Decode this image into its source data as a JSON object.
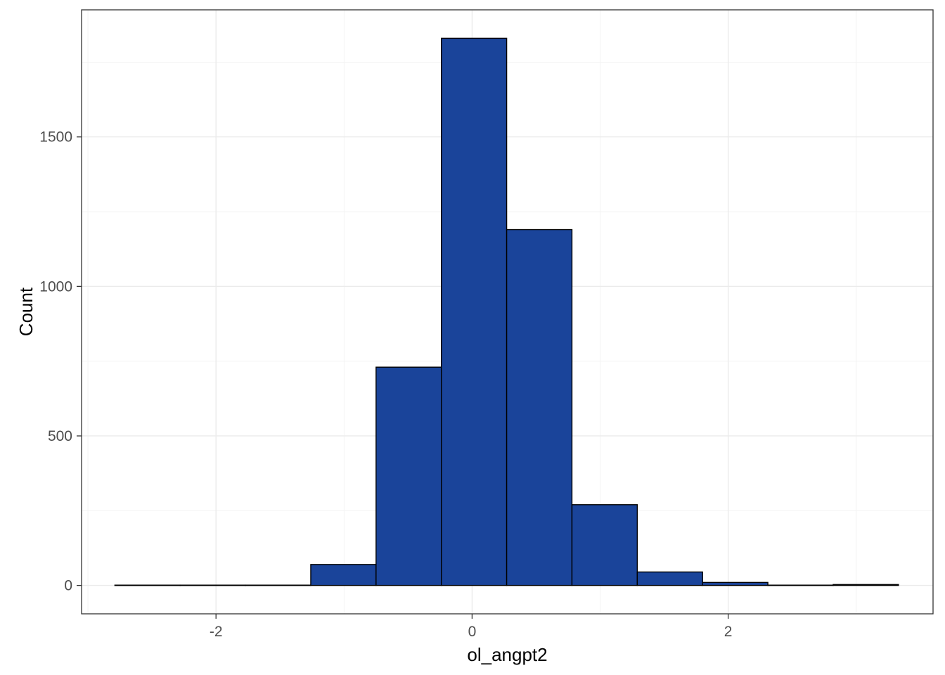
{
  "chart_data": {
    "type": "bar",
    "subtype": "histogram",
    "title": "",
    "xlabel": "ol_angpt2",
    "ylabel": "Count",
    "bar_color": "#1A449A",
    "bar_edge_color": "#000000",
    "grid": true,
    "theme": "bw",
    "xlim": [
      -3.05,
      3.6
    ],
    "ylim": [
      -95,
      1925
    ],
    "x_ticks": [
      -2,
      0,
      2
    ],
    "x_tick_labels": [
      "-2",
      "0",
      "2"
    ],
    "y_ticks": [
      0,
      500,
      1000,
      1500
    ],
    "y_tick_labels": [
      "0",
      "500",
      "1000",
      "1500"
    ],
    "bins": [
      {
        "x0": -2.79,
        "x1": -2.28,
        "count": 1
      },
      {
        "x0": -2.28,
        "x1": -1.77,
        "count": 1
      },
      {
        "x0": -1.77,
        "x1": -1.26,
        "count": 1
      },
      {
        "x0": -1.26,
        "x1": -0.75,
        "count": 70
      },
      {
        "x0": -0.75,
        "x1": -0.24,
        "count": 730
      },
      {
        "x0": -0.24,
        "x1": 0.27,
        "count": 1830
      },
      {
        "x0": 0.27,
        "x1": 0.78,
        "count": 1190
      },
      {
        "x0": 0.78,
        "x1": 1.29,
        "count": 270
      },
      {
        "x0": 1.29,
        "x1": 1.8,
        "count": 45
      },
      {
        "x0": 1.8,
        "x1": 2.31,
        "count": 10
      },
      {
        "x0": 2.31,
        "x1": 2.82,
        "count": 1
      },
      {
        "x0": 2.82,
        "x1": 3.33,
        "count": 3
      }
    ]
  }
}
